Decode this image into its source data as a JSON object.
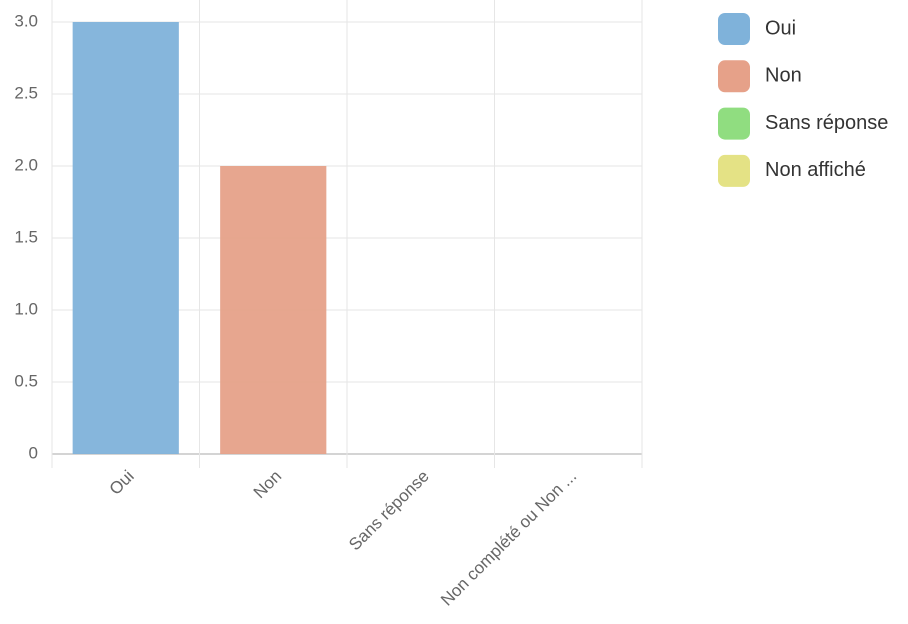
{
  "chart_data": {
    "type": "bar",
    "categories": [
      "Oui",
      "Non",
      "Sans réponse",
      "Non complété ou Non ..."
    ],
    "values": [
      3,
      2,
      0,
      0
    ],
    "colors": [
      "#7fb2da",
      "#e6a189",
      "#90dd80",
      "#e4e285"
    ],
    "legend": [
      {
        "name": "Oui",
        "color": "#7fb2da"
      },
      {
        "name": "Non",
        "color": "#e6a189"
      },
      {
        "name": "Sans réponse",
        "color": "#90dd80"
      },
      {
        "name": "Non affiché",
        "color": "#e4e285"
      }
    ],
    "ylim": [
      0,
      3
    ],
    "yticks": [
      0,
      0.5,
      {
        "value": 1,
        "label": "1.0"
      },
      1.5,
      {
        "value": 2,
        "label": "2.0"
      },
      2.5,
      {
        "value": 3,
        "label": "3.0"
      }
    ],
    "grid": true
  }
}
